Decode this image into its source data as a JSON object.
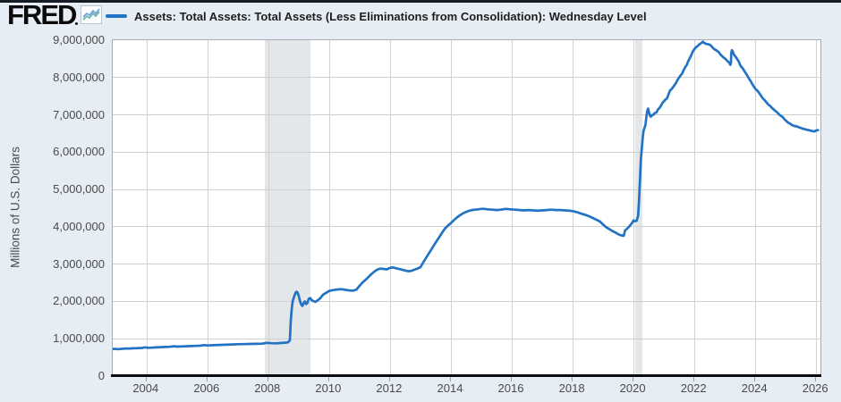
{
  "header": {
    "logo_text": "FRED"
  },
  "colors": {
    "background": "#e7edf4",
    "line": "#2273c3",
    "recession_band": "#e4e7ea",
    "axis": "#0c0c0c"
  },
  "chart_data": {
    "type": "line",
    "title": "Assets: Total Assets: Total Assets (Less Eliminations from Consolidation): Wednesday Level",
    "xlabel": "",
    "ylabel": "Millions of U.S. Dollars",
    "legend_position": "top",
    "grid": true,
    "line_color": "#2273c3",
    "xlim": [
      2002.89,
      2026.14
    ],
    "ylim": [
      0,
      9000000
    ],
    "x_ticks": [
      2004,
      2006,
      2008,
      2010,
      2012,
      2014,
      2016,
      2018,
      2020,
      2022,
      2024,
      2026
    ],
    "x_tick_labels": [
      "2004",
      "2006",
      "2008",
      "2010",
      "2012",
      "2014",
      "2016",
      "2018",
      "2020",
      "2022",
      "2024",
      "2026"
    ],
    "y_ticks": [
      0,
      1000000,
      2000000,
      3000000,
      4000000,
      5000000,
      6000000,
      7000000,
      8000000,
      9000000
    ],
    "y_tick_labels": [
      "0",
      "1,000,000",
      "2,000,000",
      "3,000,000",
      "4,000,000",
      "5,000,000",
      "6,000,000",
      "7,000,000",
      "8,000,000",
      "9,000,000"
    ],
    "recession_bands": [
      {
        "start": 2007.9,
        "end": 2009.4
      },
      {
        "start": 2020.05,
        "end": 2020.3
      }
    ],
    "x": [
      2002.89,
      2002.95,
      2003,
      2003.08,
      2003.15,
      2003.25,
      2003.35,
      2003.45,
      2003.55,
      2003.65,
      2003.75,
      2003.85,
      2003.95,
      2004.05,
      2004.15,
      2004.3,
      2004.45,
      2004.6,
      2004.75,
      2004.9,
      2005,
      2005.15,
      2005.3,
      2005.45,
      2005.6,
      2005.75,
      2005.9,
      2006,
      2006.2,
      2006.4,
      2006.6,
      2006.8,
      2007,
      2007.2,
      2007.4,
      2007.6,
      2007.8,
      2007.95,
      2008.1,
      2008.25,
      2008.4,
      2008.55,
      2008.65,
      2008.71,
      2008.74,
      2008.77,
      2008.8,
      2008.83,
      2008.86,
      2008.9,
      2008.93,
      2008.96,
      2009,
      2009.04,
      2009.08,
      2009.12,
      2009.16,
      2009.2,
      2009.24,
      2009.28,
      2009.33,
      2009.38,
      2009.43,
      2009.48,
      2009.55,
      2009.62,
      2009.7,
      2009.8,
      2009.9,
      2010,
      2010.1,
      2010.25,
      2010.4,
      2010.55,
      2010.7,
      2010.8,
      2010.9,
      2011,
      2011.1,
      2011.2,
      2011.3,
      2011.4,
      2011.5,
      2011.6,
      2011.7,
      2011.8,
      2011.9,
      2012,
      2012.1,
      2012.2,
      2012.3,
      2012.4,
      2012.5,
      2012.6,
      2012.7,
      2012.8,
      2012.9,
      2013,
      2013.1,
      2013.2,
      2013.3,
      2013.4,
      2013.5,
      2013.6,
      2013.7,
      2013.8,
      2013.9,
      2014,
      2014.1,
      2014.2,
      2014.3,
      2014.4,
      2014.5,
      2014.6,
      2014.7,
      2014.8,
      2014.9,
      2015,
      2015.1,
      2015.2,
      2015.35,
      2015.5,
      2015.65,
      2015.8,
      2015.95,
      2016.1,
      2016.25,
      2016.4,
      2016.55,
      2016.7,
      2016.85,
      2017,
      2017.15,
      2017.3,
      2017.45,
      2017.6,
      2017.75,
      2017.9,
      2018,
      2018.15,
      2018.3,
      2018.45,
      2018.6,
      2018.75,
      2018.9,
      2019,
      2019.1,
      2019.2,
      2019.3,
      2019.4,
      2019.5,
      2019.6,
      2019.68,
      2019.72,
      2019.8,
      2019.85,
      2019.9,
      2019.95,
      2020,
      2020.05,
      2020.1,
      2020.15,
      2020.18,
      2020.21,
      2020.24,
      2020.27,
      2020.3,
      2020.33,
      2020.36,
      2020.39,
      2020.42,
      2020.45,
      2020.48,
      2020.51,
      2020.54,
      2020.57,
      2020.6,
      2020.65,
      2020.7,
      2020.75,
      2020.8,
      2020.85,
      2020.9,
      2020.95,
      2021,
      2021.05,
      2021.1,
      2021.15,
      2021.2,
      2021.25,
      2021.3,
      2021.35,
      2021.4,
      2021.45,
      2021.5,
      2021.55,
      2021.6,
      2021.65,
      2021.7,
      2021.75,
      2021.8,
      2021.85,
      2021.9,
      2021.95,
      2022,
      2022.05,
      2022.1,
      2022.15,
      2022.2,
      2022.25,
      2022.28,
      2022.32,
      2022.36,
      2022.4,
      2022.45,
      2022.5,
      2022.55,
      2022.6,
      2022.65,
      2022.7,
      2022.75,
      2022.8,
      2022.85,
      2022.9,
      2022.95,
      2023,
      2023.05,
      2023.1,
      2023.15,
      2023.18,
      2023.2,
      2023.21,
      2023.23,
      2023.26,
      2023.3,
      2023.35,
      2023.4,
      2023.45,
      2023.5,
      2023.55,
      2023.6,
      2023.65,
      2023.7,
      2023.75,
      2023.8,
      2023.85,
      2023.9,
      2023.95,
      2024,
      2024.05,
      2024.1,
      2024.15,
      2024.2,
      2024.25,
      2024.3,
      2024.35,
      2024.4,
      2024.45,
      2024.5,
      2024.55,
      2024.6,
      2024.65,
      2024.7,
      2024.75,
      2024.8,
      2024.85,
      2024.9,
      2024.95,
      2025,
      2025.05,
      2025.1,
      2025.15,
      2025.2,
      2025.25,
      2025.3,
      2025.35,
      2025.4,
      2025.45,
      2025.5,
      2025.55,
      2025.6,
      2025.65,
      2025.7,
      2025.75,
      2025.8,
      2025.85,
      2025.9,
      2025.95,
      2026,
      2026.06
    ],
    "values": [
      720000,
      732000,
      725000,
      722000,
      728000,
      735000,
      740000,
      738000,
      745000,
      748000,
      752000,
      755000,
      770000,
      758000,
      762000,
      768000,
      775000,
      780000,
      785000,
      800000,
      790000,
      795000,
      800000,
      805000,
      810000,
      815000,
      830000,
      822000,
      828000,
      835000,
      840000,
      848000,
      855000,
      858000,
      862000,
      865000,
      868000,
      890000,
      880000,
      878000,
      885000,
      895000,
      905000,
      960000,
      1480000,
      1780000,
      2000000,
      2080000,
      2150000,
      2240000,
      2260000,
      2240000,
      2150000,
      2020000,
      1920000,
      1880000,
      1950000,
      2000000,
      1930000,
      1950000,
      2070000,
      2090000,
      2030000,
      2010000,
      1990000,
      2030000,
      2080000,
      2180000,
      2230000,
      2280000,
      2300000,
      2320000,
      2330000,
      2310000,
      2290000,
      2290000,
      2320000,
      2420000,
      2510000,
      2580000,
      2660000,
      2740000,
      2810000,
      2860000,
      2880000,
      2870000,
      2860000,
      2900000,
      2910000,
      2890000,
      2870000,
      2850000,
      2830000,
      2810000,
      2820000,
      2850000,
      2880000,
      2920000,
      3060000,
      3190000,
      3320000,
      3450000,
      3580000,
      3700000,
      3830000,
      3950000,
      4030000,
      4100000,
      4180000,
      4250000,
      4310000,
      4360000,
      4400000,
      4430000,
      4450000,
      4460000,
      4470000,
      4480000,
      4480000,
      4470000,
      4460000,
      4450000,
      4460000,
      4480000,
      4470000,
      4460000,
      4450000,
      4440000,
      4450000,
      4440000,
      4430000,
      4440000,
      4450000,
      4460000,
      4450000,
      4450000,
      4440000,
      4430000,
      4420000,
      4390000,
      4350000,
      4310000,
      4260000,
      4200000,
      4140000,
      4060000,
      3990000,
      3940000,
      3890000,
      3850000,
      3800000,
      3770000,
      3760000,
      3900000,
      3960000,
      4000000,
      4050000,
      4100000,
      4170000,
      4150000,
      4160000,
      4290000,
      4670000,
      5250000,
      5810000,
      6080000,
      6370000,
      6570000,
      6660000,
      6720000,
      6930000,
      7100000,
      7170000,
      7060000,
      6970000,
      6950000,
      6990000,
      7000000,
      7050000,
      7060000,
      7140000,
      7180000,
      7240000,
      7320000,
      7360000,
      7410000,
      7440000,
      7550000,
      7650000,
      7690000,
      7740000,
      7800000,
      7860000,
      7940000,
      8000000,
      8060000,
      8110000,
      8200000,
      8280000,
      8340000,
      8440000,
      8520000,
      8600000,
      8700000,
      8760000,
      8810000,
      8840000,
      8880000,
      8910000,
      8940000,
      8960000,
      8930000,
      8910000,
      8900000,
      8890000,
      8880000,
      8850000,
      8800000,
      8760000,
      8740000,
      8710000,
      8680000,
      8620000,
      8580000,
      8540000,
      8510000,
      8470000,
      8430000,
      8390000,
      8340000,
      8390000,
      8640000,
      8730000,
      8700000,
      8610000,
      8560000,
      8500000,
      8440000,
      8340000,
      8280000,
      8230000,
      8160000,
      8100000,
      8030000,
      7960000,
      7900000,
      7830000,
      7760000,
      7700000,
      7660000,
      7620000,
      7560000,
      7500000,
      7440000,
      7400000,
      7350000,
      7300000,
      7260000,
      7230000,
      7180000,
      7150000,
      7110000,
      7080000,
      7040000,
      7000000,
      6970000,
      6940000,
      6890000,
      6850000,
      6810000,
      6780000,
      6760000,
      6730000,
      6710000,
      6700000,
      6690000,
      6680000,
      6660000,
      6650000,
      6630000,
      6620000,
      6610000,
      6600000,
      6590000,
      6580000,
      6570000,
      6560000,
      6555000,
      6580000,
      6590000
    ]
  }
}
